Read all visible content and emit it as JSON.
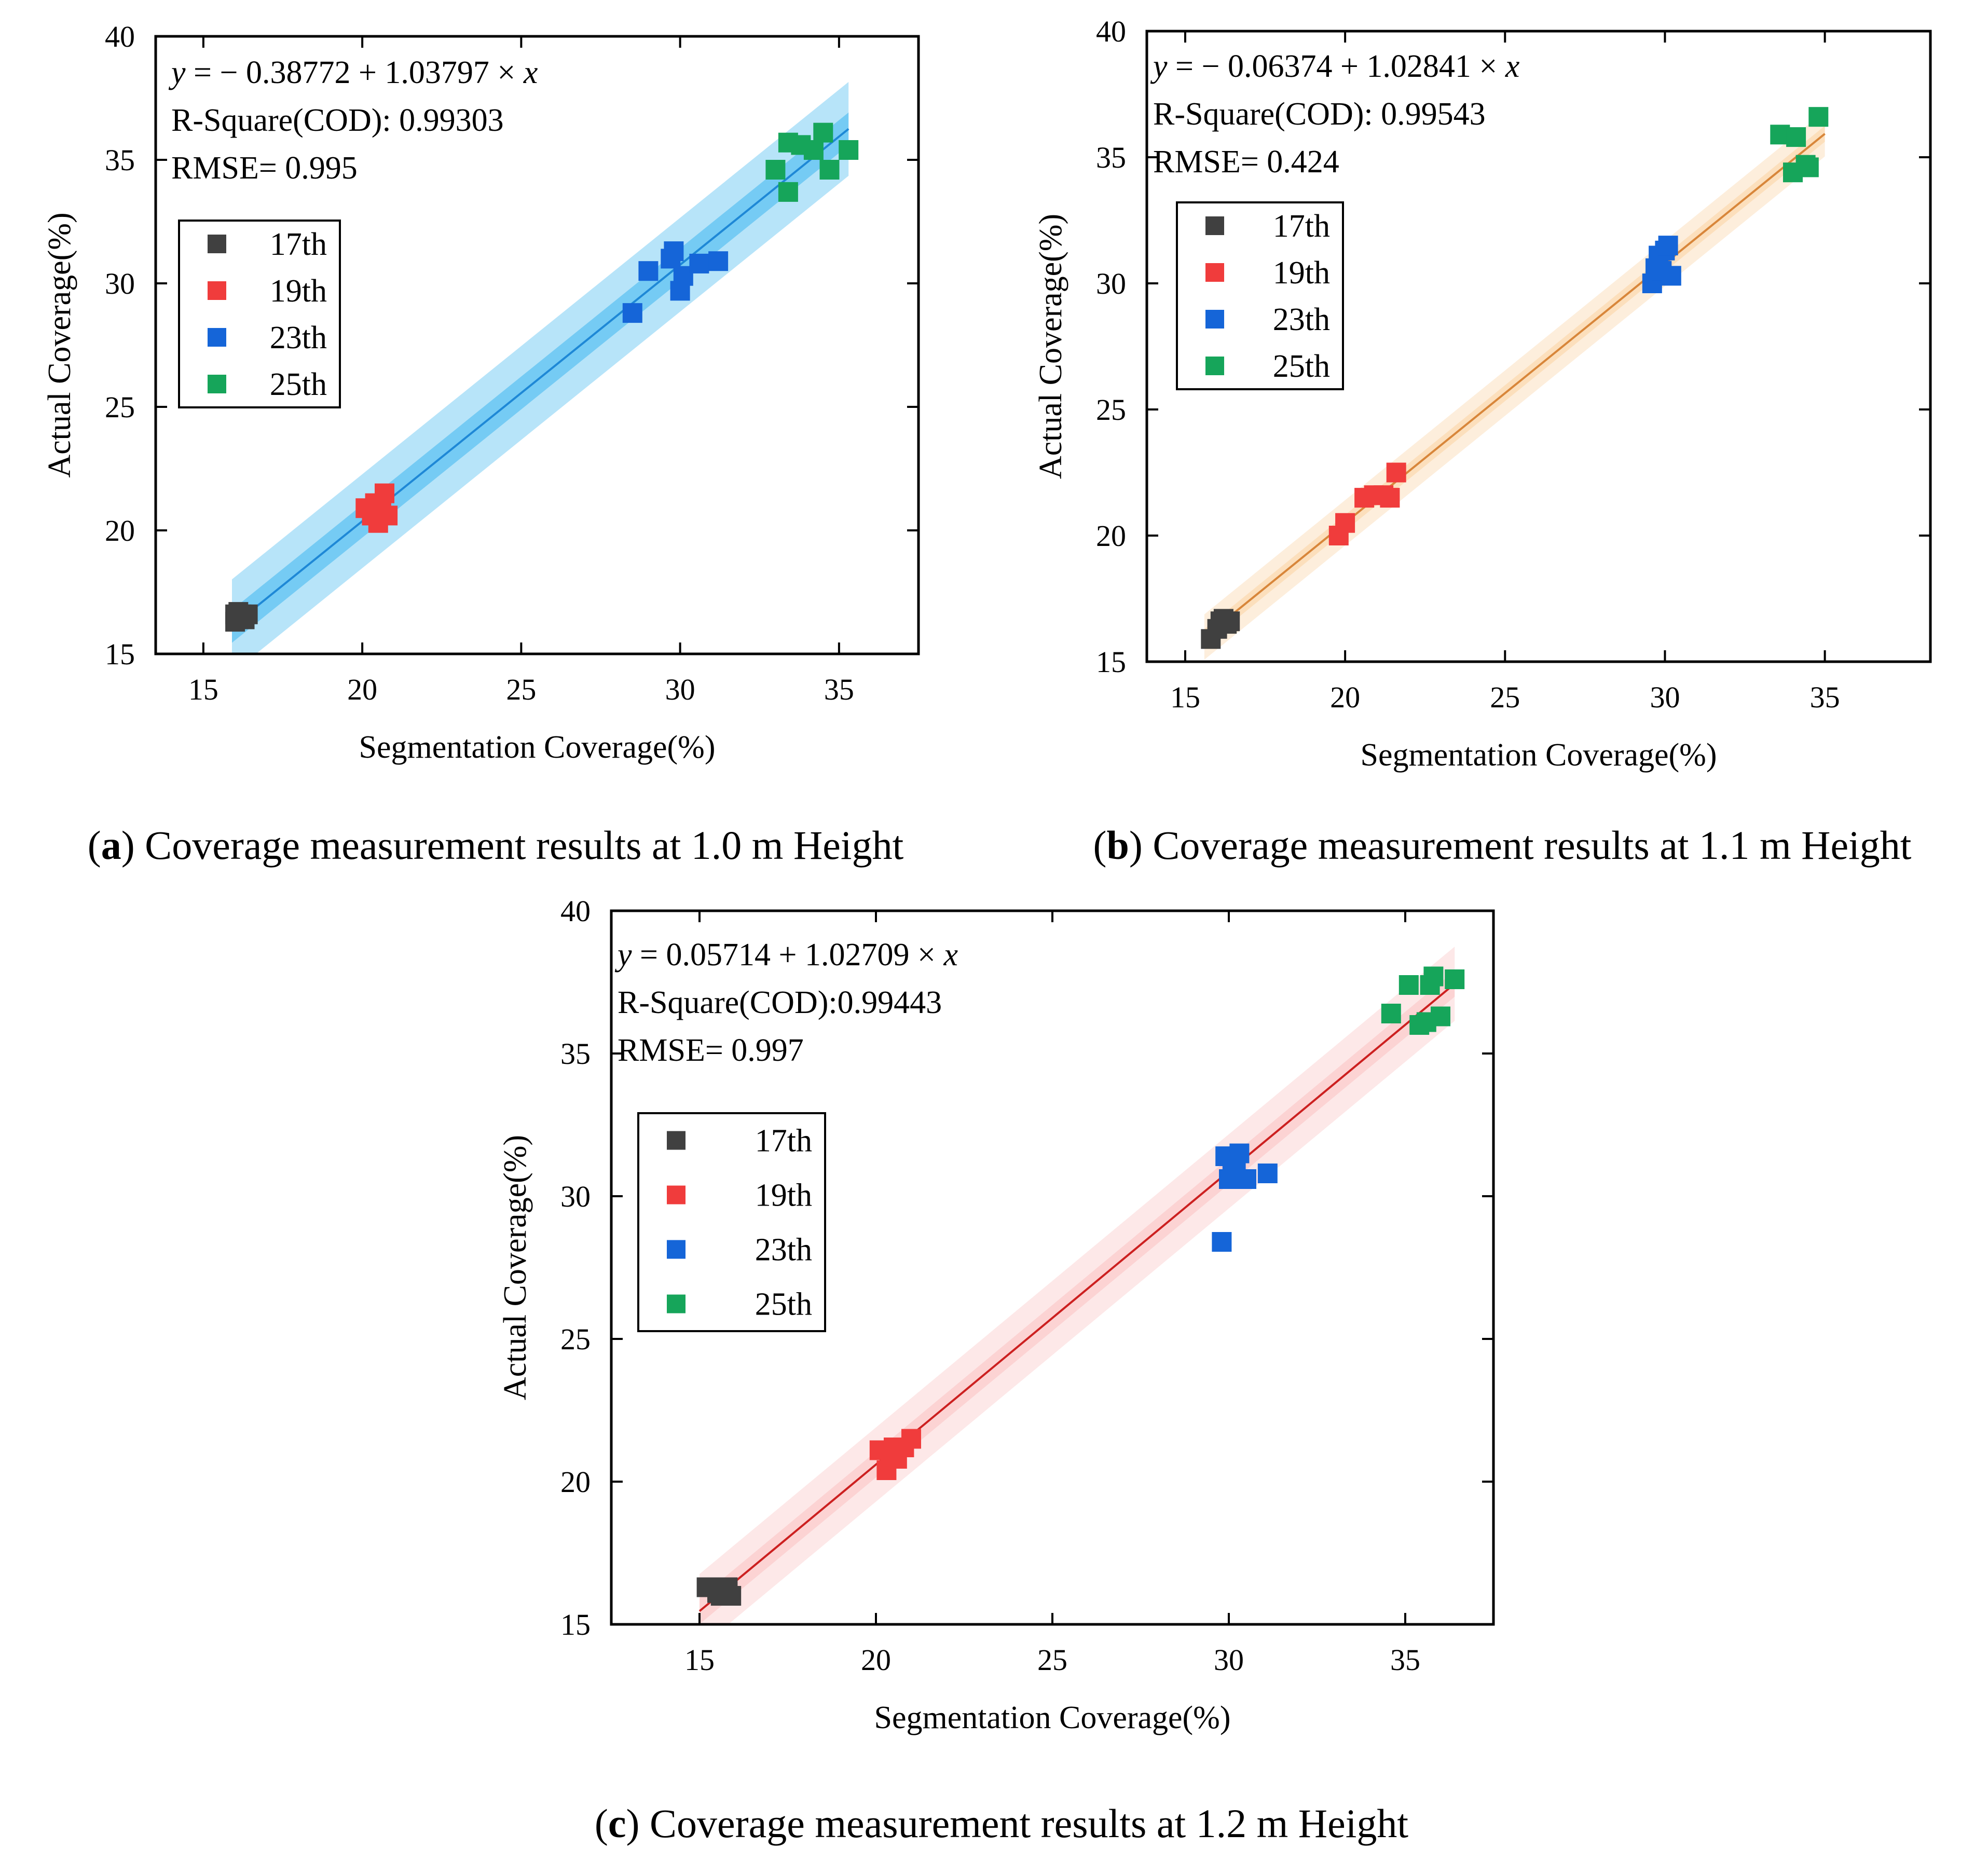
{
  "figure": {
    "captions": [
      {
        "letter": "a",
        "prefix": "(",
        "suffix": ") Coverage measurement results at 1.0 m Height"
      },
      {
        "letter": "b",
        "prefix": "(",
        "suffix": ") Coverage measurement results at 1.1 m Height"
      },
      {
        "letter": "c",
        "prefix": "(",
        "suffix": ") Coverage measurement results at 1.2 m Height"
      }
    ]
  },
  "chart_data": [
    {
      "type": "scatter",
      "panel": "a",
      "xlabel": "Segmentation Coverage(%)",
      "ylabel": "Actual Coverage(%)",
      "xlim": [
        13.5,
        37.5
      ],
      "ylim": [
        15,
        40
      ],
      "x_ticks": [
        15,
        20,
        25,
        30,
        35
      ],
      "y_ticks": [
        15,
        20,
        25,
        30,
        35,
        40
      ],
      "grid": false,
      "legend_position": "middle-left",
      "annotation": {
        "equation_y": "y",
        "equation_x": "x",
        "equation_body": " = − 0.38772 + 1.03797 × ",
        "r_square": "R-Square(COD): 0.99303",
        "rmse": "RMSE= 0.995"
      },
      "fit": {
        "intercept": -0.38772,
        "slope": 1.03797,
        "x_range": [
          15.9,
          35.3
        ]
      },
      "fit_color": "#1e88d6",
      "band_color": "#5fc3f2",
      "series": [
        {
          "name": "17th",
          "color": "#404040",
          "points": [
            [
              16.0,
              16.3
            ],
            [
              16.1,
              16.5
            ],
            [
              16.2,
              16.6
            ],
            [
              16.3,
              16.4
            ],
            [
              16.1,
              16.7
            ],
            [
              16.4,
              16.6
            ],
            [
              16.0,
              16.6
            ]
          ]
        },
        {
          "name": "19th",
          "color": "#f03c3c",
          "points": [
            [
              20.1,
              20.9
            ],
            [
              20.4,
              21.1
            ],
            [
              20.7,
              21.5
            ],
            [
              20.5,
              20.3
            ],
            [
              20.8,
              20.6
            ],
            [
              20.6,
              20.9
            ],
            [
              20.3,
              20.6
            ]
          ]
        },
        {
          "name": "23th",
          "color": "#1565d8",
          "points": [
            [
              28.5,
              28.8
            ],
            [
              29.0,
              30.5
            ],
            [
              29.7,
              31.0
            ],
            [
              29.8,
              31.3
            ],
            [
              30.0,
              29.7
            ],
            [
              30.1,
              30.3
            ],
            [
              30.6,
              30.8
            ],
            [
              31.2,
              30.9
            ]
          ]
        },
        {
          "name": "25th",
          "color": "#16a55a",
          "points": [
            [
              33.0,
              34.6
            ],
            [
              33.4,
              33.7
            ],
            [
              33.4,
              35.7
            ],
            [
              33.8,
              35.6
            ],
            [
              34.2,
              35.4
            ],
            [
              34.5,
              36.1
            ],
            [
              34.7,
              34.6
            ],
            [
              35.3,
              35.4
            ]
          ]
        }
      ]
    },
    {
      "type": "scatter",
      "panel": "b",
      "xlabel": "Segmentation Coverage(%)",
      "ylabel": "Actual Coverage(%)",
      "xlim": [
        13.8,
        38.3
      ],
      "ylim": [
        15,
        40
      ],
      "x_ticks": [
        15,
        20,
        25,
        30,
        35
      ],
      "y_ticks": [
        15,
        20,
        25,
        30,
        35,
        40
      ],
      "grid": false,
      "legend_position": "middle-left",
      "annotation": {
        "equation_y": "y",
        "equation_x": "x",
        "equation_body": " = − 0.06374 + 1.02841 × ",
        "r_square": "R-Square(COD): 0.99543",
        "rmse": "RMSE= 0.424"
      },
      "fit": {
        "intercept": -0.06374,
        "slope": 1.02841,
        "x_range": [
          15.6,
          35.0
        ]
      },
      "fit_color": "#d8863a",
      "band_color": "#fbd9b2",
      "series": [
        {
          "name": "17th",
          "color": "#404040",
          "points": [
            [
              15.8,
              15.9
            ],
            [
              16.0,
              16.3
            ],
            [
              16.1,
              16.6
            ],
            [
              16.3,
              16.5
            ],
            [
              16.2,
              16.7
            ],
            [
              16.4,
              16.6
            ]
          ]
        },
        {
          "name": "19th",
          "color": "#f03c3c",
          "points": [
            [
              19.8,
              20.0
            ],
            [
              20.0,
              20.5
            ],
            [
              20.6,
              21.5
            ],
            [
              20.9,
              21.6
            ],
            [
              21.2,
              21.6
            ],
            [
              21.4,
              21.5
            ],
            [
              21.6,
              22.5
            ]
          ]
        },
        {
          "name": "23th",
          "color": "#1565d8",
          "points": [
            [
              29.6,
              30.0
            ],
            [
              29.8,
              31.1
            ],
            [
              29.9,
              30.5
            ],
            [
              30.0,
              31.3
            ],
            [
              30.1,
              31.5
            ],
            [
              30.2,
              30.3
            ],
            [
              29.7,
              30.6
            ]
          ]
        },
        {
          "name": "25th",
          "color": "#16a55a",
          "points": [
            [
              33.6,
              35.9
            ],
            [
              34.1,
              35.8
            ],
            [
              34.0,
              34.4
            ],
            [
              34.4,
              34.7
            ],
            [
              34.5,
              34.6
            ],
            [
              34.8,
              36.6
            ]
          ]
        }
      ]
    },
    {
      "type": "scatter",
      "panel": "c",
      "xlabel": "Segmentation Coverage(%)",
      "ylabel": "Actual Coverage(%)",
      "xlim": [
        12.5,
        37.5
      ],
      "ylim": [
        15,
        40
      ],
      "x_ticks": [
        15,
        20,
        25,
        30,
        35
      ],
      "y_ticks": [
        15,
        20,
        25,
        30,
        35,
        40
      ],
      "grid": false,
      "legend_position": "middle-left",
      "annotation": {
        "equation_y": "y",
        "equation_x": "x",
        "equation_body": " = 0.05714 + 1.02709 × ",
        "r_square": "R-Square(COD):0.99443",
        "rmse": "RMSE= 0.997"
      },
      "fit": {
        "intercept": 0.05714,
        "slope": 1.02709,
        "x_range": [
          15.0,
          36.4
        ]
      },
      "fit_color": "#cc2020",
      "band_color": "#fbcccc",
      "series": [
        {
          "name": "17th",
          "color": "#404040",
          "points": [
            [
              15.2,
              16.3
            ],
            [
              15.4,
              16.3
            ],
            [
              15.6,
              16.0
            ],
            [
              15.8,
              16.3
            ],
            [
              15.9,
              16.0
            ],
            [
              15.5,
              16.1
            ]
          ]
        },
        {
          "name": "19th",
          "color": "#f03c3c",
          "points": [
            [
              20.1,
              21.1
            ],
            [
              20.3,
              20.4
            ],
            [
              20.5,
              21.2
            ],
            [
              20.6,
              20.8
            ],
            [
              20.8,
              21.2
            ],
            [
              21.0,
              21.5
            ],
            [
              20.4,
              21.0
            ]
          ]
        },
        {
          "name": "23th",
          "color": "#1565d8",
          "points": [
            [
              29.8,
              28.4
            ],
            [
              29.9,
              31.4
            ],
            [
              30.0,
              30.6
            ],
            [
              30.2,
              31.0
            ],
            [
              30.3,
              31.5
            ],
            [
              30.5,
              30.6
            ],
            [
              31.1,
              30.8
            ],
            [
              30.1,
              31.2
            ]
          ]
        },
        {
          "name": "25th",
          "color": "#16a55a",
          "points": [
            [
              34.6,
              36.4
            ],
            [
              35.1,
              37.4
            ],
            [
              35.4,
              36.0
            ],
            [
              35.7,
              37.4
            ],
            [
              35.8,
              37.7
            ],
            [
              36.0,
              36.3
            ],
            [
              36.4,
              37.6
            ],
            [
              35.6,
              36.1
            ]
          ]
        }
      ]
    }
  ]
}
